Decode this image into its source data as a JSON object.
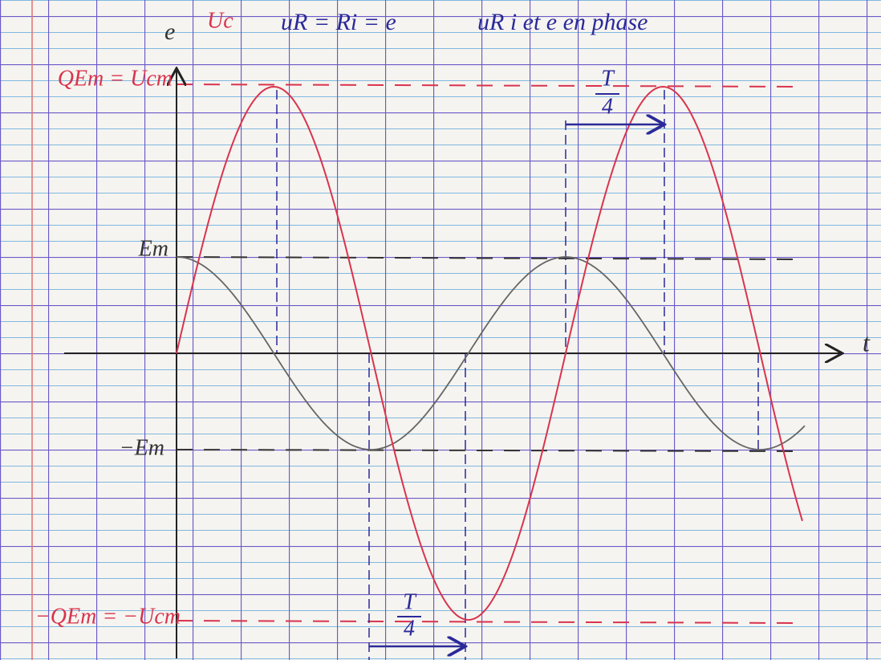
{
  "top_note": {
    "curve_label": "Uc",
    "relation": "uR = Ri = e",
    "comment": "uR i et e en phase"
  },
  "axes": {
    "y_label": "e",
    "x_label": "t"
  },
  "levels": {
    "uc_max": "QEm = Ucm",
    "e_max": "Em",
    "e_min": "−Em",
    "uc_min": "−QEm = −Ucm"
  },
  "quarter_period_top": {
    "numerator": "T",
    "denominator": "4"
  },
  "quarter_period_bottom": {
    "numerator": "T",
    "denominator": "4"
  }
}
